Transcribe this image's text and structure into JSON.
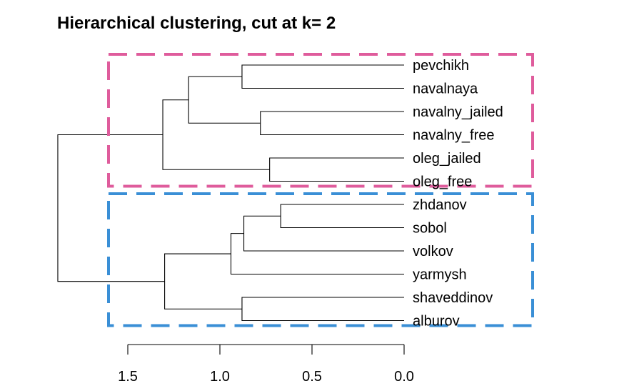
{
  "chart_data": {
    "type": "dendrogram",
    "title": "Hierarchical clustering,  cut at k= 2",
    "orientation": "horizontal",
    "leaves": [
      "pevchikh",
      "navalnaya",
      "navalny_jailed",
      "navalny_free",
      "oleg_jailed",
      "oleg_free",
      "zhdanov",
      "sobol",
      "volkov",
      "yarmysh",
      "shaveddinov",
      "alburov"
    ],
    "merges": [
      {
        "a": "pevchikh",
        "b": "navalnaya",
        "height": 0.88
      },
      {
        "a": "navalny_jailed",
        "b": "navalny_free",
        "height": 0.78
      },
      {
        "a": "oleg_jailed",
        "b": "oleg_free",
        "height": 0.73
      },
      {
        "a": "zhdanov",
        "b": "sobol",
        "height": 0.67
      },
      {
        "a": "shaveddinov",
        "b": "alburov",
        "height": 0.88
      },
      {
        "a": 0,
        "b": 1,
        "height": 1.17
      },
      {
        "a": 3,
        "b": "volkov",
        "height": 0.87
      },
      {
        "a": 6,
        "b": "yarmysh",
        "height": 0.94
      },
      {
        "a": 5,
        "b": 2,
        "height": 1.31
      },
      {
        "a": 7,
        "b": 4,
        "height": 1.3
      },
      {
        "a": 8,
        "b": 9,
        "height": 1.88
      }
    ],
    "xlim": [
      1.5,
      0.0
    ],
    "ticks": [
      1.5,
      1.0,
      0.5,
      0.0
    ],
    "tick_labels": [
      "1.5",
      "1.0",
      "0.5",
      "0.0"
    ],
    "clusters": [
      {
        "leaves": [
          "pevchikh",
          "navalnaya",
          "navalny_jailed",
          "navalny_free",
          "oleg_jailed",
          "oleg_free"
        ],
        "color": "#DF5C9C"
      },
      {
        "leaves": [
          "zhdanov",
          "sobol",
          "volkov",
          "yarmysh",
          "shaveddinov",
          "alburov"
        ],
        "color": "#3A8FD6"
      }
    ],
    "link_color": "#000000"
  }
}
